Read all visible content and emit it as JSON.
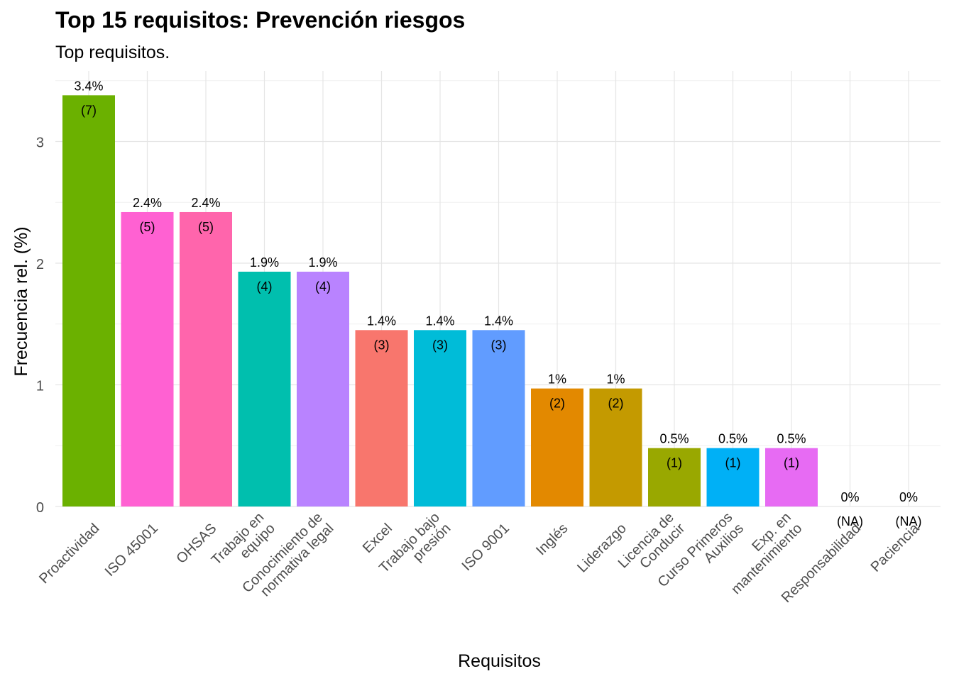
{
  "chart_data": {
    "type": "bar",
    "title": "Top 15 requisitos: Prevención riesgos",
    "subtitle": "Top requisitos.",
    "xlabel": "Requisitos",
    "ylabel": "Frecuencia rel. (%)",
    "ylim": [
      0,
      3.5
    ],
    "yticks": [
      0,
      1,
      2,
      3
    ],
    "grid": true,
    "categories": [
      [
        "Proactividad"
      ],
      [
        "ISO 45001"
      ],
      [
        "OHSAS"
      ],
      [
        "Trabajo en",
        "equipo"
      ],
      [
        "Conocimiento de",
        "normativa legal"
      ],
      [
        "Excel"
      ],
      [
        "Trabajo bajo",
        "presión"
      ],
      [
        "ISO 9001"
      ],
      [
        "Inglés"
      ],
      [
        "Liderazgo"
      ],
      [
        "Licencia de",
        "Conducir"
      ],
      [
        "Curso Primeros",
        "Auxilios"
      ],
      [
        "Exp. en",
        "mantenimiento"
      ],
      [
        "Responsabilidad"
      ],
      [
        "Paciencia"
      ]
    ],
    "values": [
      3.38,
      2.42,
      2.42,
      1.93,
      1.93,
      1.45,
      1.45,
      1.45,
      0.97,
      0.97,
      0.48,
      0.48,
      0.48,
      0,
      0
    ],
    "pct_labels": [
      "3.4%",
      "2.4%",
      "2.4%",
      "1.9%",
      "1.9%",
      "1.4%",
      "1.4%",
      "1.4%",
      "1%",
      "1%",
      "0.5%",
      "0.5%",
      "0.5%",
      "0%",
      "0%"
    ],
    "count_labels": [
      "(7)",
      "(5)",
      "(5)",
      "(4)",
      "(4)",
      "(3)",
      "(3)",
      "(3)",
      "(2)",
      "(2)",
      "(1)",
      "(1)",
      "(1)",
      "(NA)",
      "(NA)"
    ],
    "colors": [
      "#6BB100",
      "#FF61D2",
      "#FF65AC",
      "#00BFAE",
      "#B983FF",
      "#F8766D",
      "#00BCD8",
      "#619CFF",
      "#E38900",
      "#C49A00",
      "#99A800",
      "#00B0F6",
      "#E76BF3",
      "#999999",
      "#999999"
    ]
  }
}
